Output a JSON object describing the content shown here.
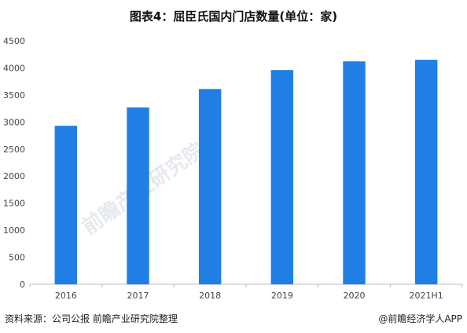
{
  "chart_data": {
    "type": "bar",
    "title": "图表4：屈臣氏国内门店数量(单位：家)",
    "categories": [
      "2016",
      "2017",
      "2018",
      "2019",
      "2020",
      "2021H1"
    ],
    "values": [
      2930,
      3270,
      3610,
      3960,
      4120,
      4150
    ],
    "ylim": [
      0,
      4500
    ],
    "yticks": [
      0,
      500,
      1000,
      1500,
      2000,
      2500,
      3000,
      3500,
      4000,
      4500
    ],
    "bar_color": "#1f7fe5",
    "grid": false
  },
  "footer": {
    "source": "资料来源：公司公报 前瞻产业研究院整理",
    "brand": "@前瞻经济学人APP"
  },
  "watermark": {
    "text": "前瞻产业研究院"
  }
}
